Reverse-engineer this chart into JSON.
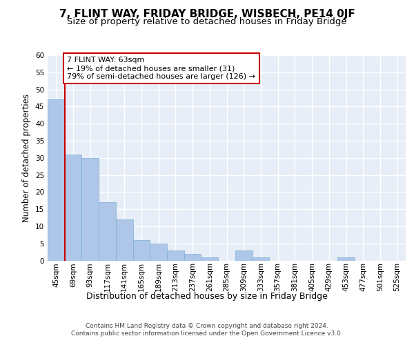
{
  "title": "7, FLINT WAY, FRIDAY BRIDGE, WISBECH, PE14 0JF",
  "subtitle": "Size of property relative to detached houses in Friday Bridge",
  "xlabel": "Distribution of detached houses by size in Friday Bridge",
  "ylabel": "Number of detached properties",
  "bar_labels": [
    "45sqm",
    "69sqm",
    "93sqm",
    "117sqm",
    "141sqm",
    "165sqm",
    "189sqm",
    "213sqm",
    "237sqm",
    "261sqm",
    "285sqm",
    "309sqm",
    "333sqm",
    "357sqm",
    "381sqm",
    "405sqm",
    "429sqm",
    "453sqm",
    "477sqm",
    "501sqm",
    "525sqm"
  ],
  "bar_values": [
    47,
    31,
    30,
    17,
    12,
    6,
    5,
    3,
    2,
    1,
    0,
    3,
    1,
    0,
    0,
    0,
    0,
    1,
    0,
    0,
    0
  ],
  "bar_color": "#aec6e8",
  "bar_edge_color": "#7aaed6",
  "background_color": "#e8eef7",
  "grid_color": "#ffffff",
  "annotation_text": "7 FLINT WAY: 63sqm\n← 19% of detached houses are smaller (31)\n79% of semi-detached houses are larger (126) →",
  "annotation_box_color": "#ffffff",
  "annotation_box_edge": "#cc0000",
  "vline_color": "#cc0000",
  "vline_x": 0.5,
  "ylim": [
    0,
    60
  ],
  "yticks": [
    0,
    5,
    10,
    15,
    20,
    25,
    30,
    35,
    40,
    45,
    50,
    55,
    60
  ],
  "footer": "Contains HM Land Registry data © Crown copyright and database right 2024.\nContains public sector information licensed under the Open Government Licence v3.0.",
  "title_fontsize": 11,
  "subtitle_fontsize": 9.5,
  "xlabel_fontsize": 9,
  "ylabel_fontsize": 8.5,
  "tick_fontsize": 7.5,
  "footer_fontsize": 6.5
}
